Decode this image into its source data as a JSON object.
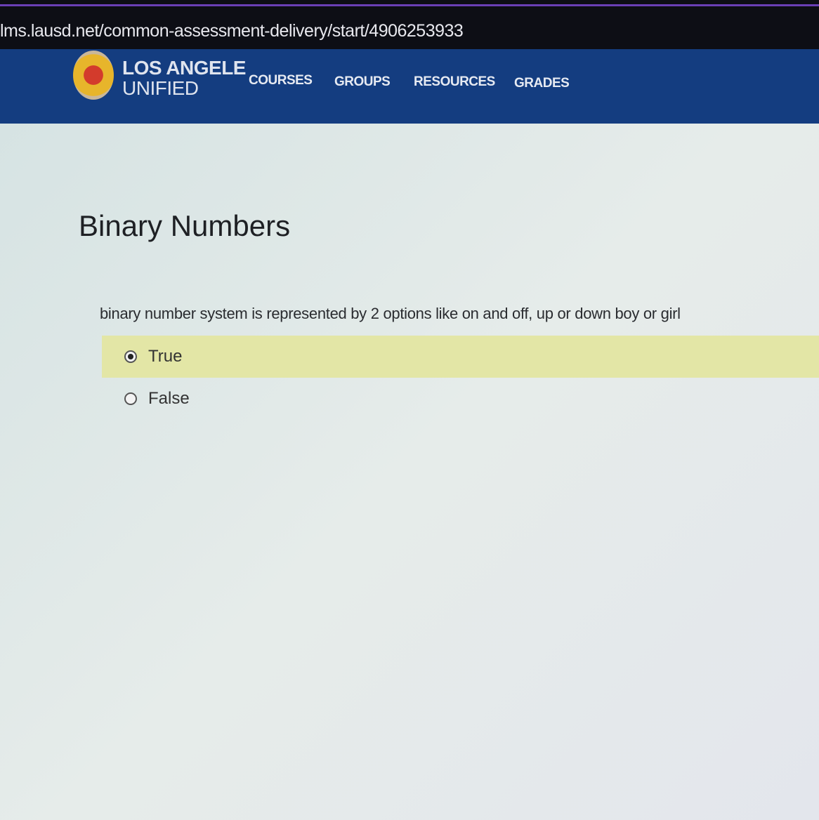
{
  "browser": {
    "url": "lms.lausd.net/common-assessment-delivery/start/4906253933"
  },
  "header": {
    "brand_line1": "LOS ANGELE",
    "brand_line2": "UNIFIED",
    "nav": [
      {
        "label": "COURSES"
      },
      {
        "label": "GROUPS"
      },
      {
        "label": "RESOURCES"
      },
      {
        "label": "GRADES"
      }
    ],
    "color": "#143d80"
  },
  "assessment": {
    "title": "Binary Numbers",
    "question": "binary number system is represented by 2 options like on and off, up or down boy or girl",
    "options": [
      {
        "label": "True",
        "selected": true
      },
      {
        "label": "False",
        "selected": false
      }
    ],
    "highlight_color": "#e3e6a6"
  }
}
